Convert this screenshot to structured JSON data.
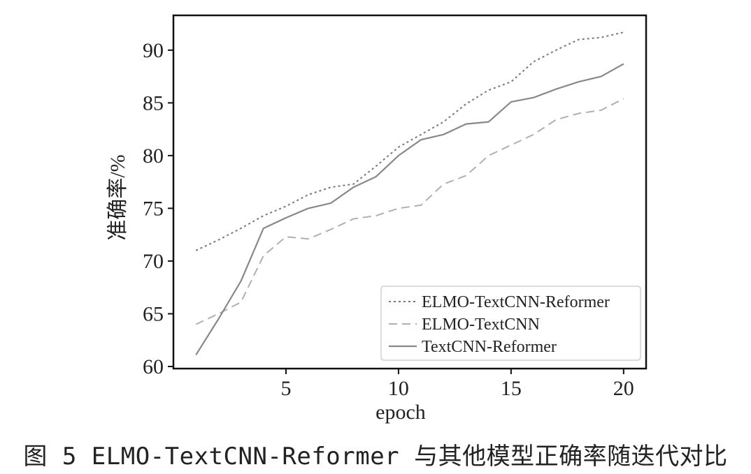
{
  "caption": "图 5  ELMO-TextCNN-Reformer 与其他模型正确率随迭代对比",
  "chart_data": {
    "type": "line",
    "title": "",
    "xlabel": "epoch",
    "ylabel": "准确率/%",
    "xlim": [
      0,
      21
    ],
    "ylim": [
      59.8,
      93.3
    ],
    "xticks": [
      5,
      10,
      15,
      20
    ],
    "yticks": [
      60,
      65,
      70,
      75,
      80,
      85,
      90
    ],
    "grid": false,
    "legend_position": "bottom-right",
    "x": [
      1,
      2,
      3,
      4,
      5,
      6,
      7,
      8,
      9,
      10,
      11,
      12,
      13,
      14,
      15,
      16,
      17,
      18,
      19,
      20
    ],
    "series": [
      {
        "name": "ELMO-TextCNN-Reformer",
        "style": "dotted",
        "color": "#777777",
        "values": [
          71.0,
          72.0,
          73.1,
          74.3,
          75.2,
          76.3,
          77.0,
          77.3,
          79.0,
          80.8,
          82.0,
          83.2,
          84.9,
          86.2,
          87.0,
          88.9,
          90.0,
          91.0,
          91.2,
          91.7
        ]
      },
      {
        "name": "ELMO-TextCNN",
        "style": "dashed",
        "color": "#b0b0b0",
        "values": [
          64.0,
          65.0,
          66.1,
          70.5,
          72.3,
          72.1,
          73.0,
          74.0,
          74.3,
          75.0,
          75.3,
          77.3,
          78.1,
          80.0,
          81.0,
          82.0,
          83.4,
          84.0,
          84.3,
          85.4
        ]
      },
      {
        "name": "TextCNN-Reformer",
        "style": "solid",
        "color": "#888888",
        "values": [
          61.1,
          64.5,
          68.1,
          73.1,
          74.1,
          75.0,
          75.5,
          77.0,
          78.0,
          80.0,
          81.5,
          82.0,
          83.0,
          83.2,
          85.1,
          85.5,
          86.3,
          87.0,
          87.5,
          88.7
        ]
      }
    ]
  }
}
